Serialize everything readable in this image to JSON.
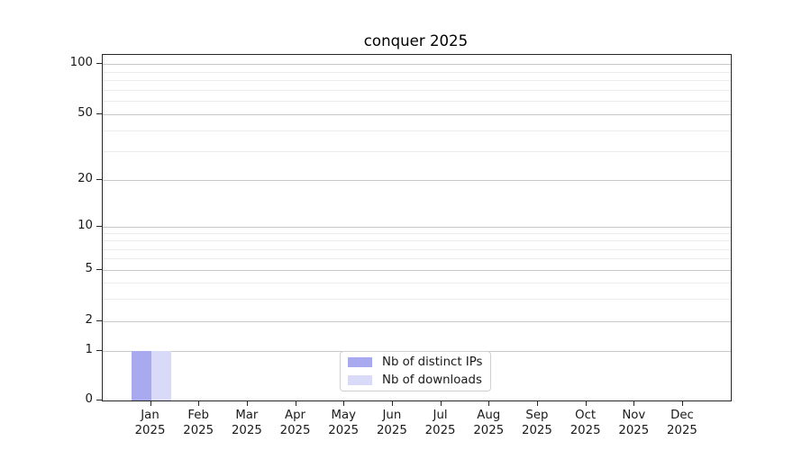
{
  "chart_data": {
    "type": "bar",
    "title": "conquer 2025",
    "categories": [
      "Jan",
      "Feb",
      "Mar",
      "Apr",
      "May",
      "Jun",
      "Jul",
      "Aug",
      "Sep",
      "Oct",
      "Nov",
      "Dec"
    ],
    "category_year": "2025",
    "series": [
      {
        "name": "Nb of distinct IPs",
        "color": "#a9a9f0",
        "values": [
          1,
          0,
          0,
          0,
          0,
          0,
          0,
          0,
          0,
          0,
          0,
          0
        ]
      },
      {
        "name": "Nb of downloads",
        "color": "#d9d9f8",
        "values": [
          1,
          0,
          0,
          0,
          0,
          0,
          0,
          0,
          0,
          0,
          0,
          0
        ]
      }
    ],
    "xlabel": "",
    "ylabel": "",
    "y_axis": {
      "scale": "symlog",
      "ticks": [
        0,
        1,
        2,
        5,
        10,
        20,
        50,
        100
      ],
      "minor_gridlines": [
        3,
        4,
        6,
        7,
        8,
        9,
        30,
        40,
        60,
        70,
        80,
        90
      ],
      "range": [
        0,
        115
      ]
    },
    "grid": true,
    "legend": {
      "position": "lower center",
      "entries": [
        "Nb of distinct IPs",
        "Nb of downloads"
      ]
    },
    "y_anchor_fractions": [
      [
        0,
        0
      ],
      [
        1,
        0.1432
      ],
      [
        2,
        0.2292
      ],
      [
        5,
        0.3776
      ],
      [
        10,
        0.5026
      ],
      [
        20,
        0.638
      ],
      [
        50,
        0.8281
      ],
      [
        100,
        0.974
      ]
    ]
  },
  "colors": {
    "major_grid": "#c9c9c9",
    "minor_grid": "#ececec",
    "spine": "#262626",
    "text": "#1a1a1a",
    "background": "#ffffff"
  }
}
